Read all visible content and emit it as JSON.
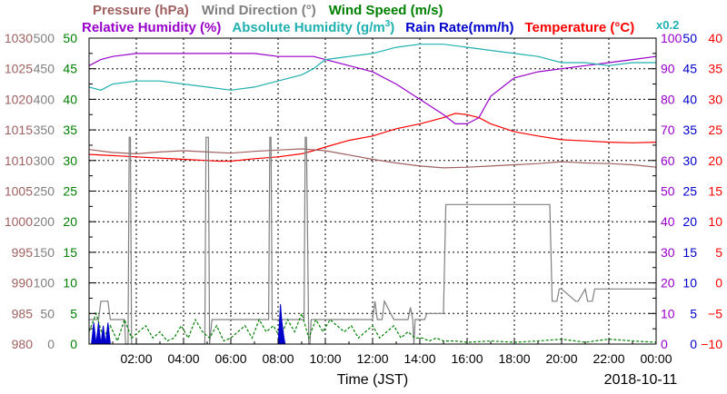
{
  "chart_data": {
    "type": "line",
    "x_axis": {
      "label": "Time (JST)",
      "date": "2018-10-11",
      "unit": "hours",
      "range": [
        0,
        24
      ],
      "tick_values": [
        2,
        4,
        6,
        8,
        10,
        12,
        14,
        16,
        18,
        20,
        22,
        24
      ],
      "tick_labels": [
        "02:00",
        "04:00",
        "06:00",
        "08:00",
        "10:00",
        "12:00",
        "14:00",
        "16:00",
        "18:00",
        "20:00",
        "22:00",
        "00:00"
      ]
    },
    "legend": {
      "row1": [
        {
          "text": "Pressure (hPa)",
          "color": "#a06060"
        },
        {
          "text": "Wind Direction (°)",
          "color": "#808080"
        },
        {
          "text": "Wind Speed (m/s)",
          "color": "#008000"
        }
      ],
      "row2": [
        {
          "text": "Relative Humidity (%)",
          "color": "#9900cc"
        },
        {
          "text": "Absolute Humidity (g/m",
          "sup": "3",
          "close": ")",
          "color": "#20b0b0"
        },
        {
          "text": "Rain Rate(mm/h)",
          "color": "#0000cc"
        },
        {
          "text": "Temperature (°C)",
          "color": "#ff0000"
        }
      ],
      "note": {
        "text": "x0.2",
        "color": "#20b0b0"
      }
    },
    "y_axes": {
      "pressure": {
        "color": "#a06060",
        "ticks": [
          980,
          985,
          990,
          995,
          1000,
          1005,
          1010,
          1015,
          1020,
          1025,
          1030
        ],
        "range": [
          980,
          1030
        ]
      },
      "wind_direction": {
        "color": "#808080",
        "ticks": [
          0,
          50,
          100,
          150,
          200,
          250,
          300,
          350,
          400,
          450,
          500
        ],
        "range": [
          0,
          500
        ]
      },
      "wind_speed": {
        "color": "#008000",
        "ticks": [
          0,
          5,
          10,
          15,
          20,
          25,
          30,
          35,
          40,
          45,
          50
        ],
        "range": [
          0,
          50
        ]
      },
      "humidity": {
        "color": "#9900cc",
        "ticks": [
          0,
          10,
          20,
          30,
          40,
          50,
          60,
          70,
          80,
          90,
          100
        ],
        "range": [
          0,
          100
        ]
      },
      "rain_rate": {
        "color": "#0000cc",
        "ticks": [
          0,
          5,
          10,
          15,
          20,
          25,
          30,
          35,
          40,
          45,
          50
        ],
        "range": [
          0,
          50
        ]
      },
      "temperature": {
        "color": "#ff0000",
        "ticks": [
          "−10",
          "−5",
          "0",
          "5",
          "10",
          "15",
          "20",
          "25",
          "30",
          "35",
          "40"
        ],
        "range": [
          -10,
          40
        ]
      }
    },
    "grid": true,
    "series": [
      {
        "name": "Temperature (°C)",
        "axis": "temperature",
        "color": "#ff0000",
        "x": [
          0,
          1,
          2,
          3,
          4,
          5,
          5.5,
          6,
          7,
          8,
          9,
          9.5,
          10,
          11,
          12,
          13,
          14,
          15,
          15.5,
          16,
          16.5,
          17,
          18,
          19,
          20,
          21,
          22,
          23,
          24
        ],
        "y": [
          21.0,
          20.8,
          20.6,
          20.4,
          20.2,
          20.0,
          19.9,
          19.9,
          20.3,
          20.6,
          21.1,
          21.6,
          22.2,
          23.3,
          24.0,
          25.2,
          26.0,
          27.0,
          27.7,
          27.5,
          27.0,
          26.0,
          24.7,
          24.0,
          23.4,
          23.2,
          23.0,
          22.9,
          23.0
        ]
      },
      {
        "name": "Relative Humidity (%)",
        "axis": "humidity",
        "color": "#9900cc",
        "x": [
          0,
          0.5,
          1,
          2,
          3,
          4,
          5,
          6,
          7,
          8,
          9,
          9.5,
          10,
          11,
          12,
          13,
          14,
          15,
          15.5,
          16,
          16.5,
          17,
          18,
          19,
          20,
          21,
          22,
          23,
          24
        ],
        "y": [
          91,
          93,
          94,
          95,
          95,
          95,
          95,
          95,
          95,
          94,
          94,
          94,
          93,
          91,
          89,
          85,
          80,
          75,
          72,
          72,
          74,
          81,
          87,
          89,
          90,
          91,
          92,
          93,
          94
        ]
      },
      {
        "name": "Absolute Humidity (g/m3)",
        "axis": "humidity",
        "scale": 0.2,
        "color": "#20b0b0",
        "x": [
          0,
          0.5,
          1,
          2,
          3,
          4,
          5,
          6,
          7,
          8,
          9,
          9.5,
          10,
          11,
          12,
          13,
          14,
          15,
          16,
          17,
          18,
          19,
          20,
          21,
          22,
          23,
          24
        ],
        "y": [
          84,
          83,
          85,
          86,
          86,
          85,
          84,
          83,
          84,
          86,
          88,
          90,
          93,
          94,
          95,
          97,
          98,
          98,
          97,
          96,
          95,
          94,
          92,
          92,
          91,
          92,
          92
        ]
      },
      {
        "name": "Pressure (hPa)",
        "axis": "pressure",
        "color": "#a06060",
        "x": [
          0,
          1,
          2,
          3,
          4,
          5,
          6,
          7,
          8,
          9,
          10,
          11,
          12,
          13,
          14,
          15,
          16,
          17,
          18,
          19,
          20,
          21,
          22,
          23,
          24
        ],
        "y": [
          1011.8,
          1011.3,
          1011.1,
          1011.4,
          1011.6,
          1011.4,
          1011.2,
          1011.5,
          1011.7,
          1011.9,
          1011.6,
          1010.9,
          1010.2,
          1009.6,
          1009.1,
          1008.8,
          1008.9,
          1009.1,
          1009.3,
          1009.5,
          1009.8,
          1009.6,
          1009.5,
          1009.3,
          1008.9
        ]
      },
      {
        "name": "Wind Direction (°)",
        "axis": "wind_direction",
        "color": "#808080",
        "x": [
          0,
          0.4,
          0.5,
          0.8,
          0.9,
          1.5,
          1.55,
          1.65,
          1.7,
          1.75,
          1.8,
          4.9,
          4.95,
          5.05,
          5.1,
          5.2,
          5.5,
          7.6,
          7.65,
          7.7,
          7.75,
          7.8,
          8.2,
          9.1,
          9.15,
          9.2,
          9.3,
          9.35,
          9.4,
          9.5,
          12.0,
          12.1,
          12.2,
          12.4,
          12.5,
          12.9,
          13.0,
          13.5,
          13.6,
          13.7,
          13.75,
          13.8,
          14.2,
          14.3,
          14.4,
          15.0,
          15.1,
          15.2,
          19.4,
          19.5,
          19.6,
          19.8,
          19.9,
          20.0,
          20.6,
          20.7,
          21.0,
          21.1,
          21.3,
          21.4,
          21.6,
          24.0
        ],
        "y": [
          40,
          40,
          70,
          70,
          40,
          40,
          0,
          0,
          338,
          338,
          0,
          0,
          338,
          338,
          0,
          40,
          40,
          40,
          338,
          338,
          40,
          40,
          40,
          40,
          338,
          338,
          0,
          0,
          40,
          40,
          40,
          70,
          40,
          40,
          70,
          40,
          40,
          40,
          60,
          40,
          0,
          40,
          40,
          50,
          50,
          50,
          228,
          228,
          228,
          228,
          70,
          70,
          90,
          90,
          70,
          70,
          90,
          70,
          70,
          90,
          90,
          90
        ]
      },
      {
        "name": "Wind Speed (m/s)",
        "axis": "wind_speed",
        "color": "#008000",
        "style": "dashed",
        "x": [
          0,
          0.3,
          0.6,
          0.9,
          1.2,
          1.5,
          1.8,
          2.1,
          2.4,
          2.7,
          3.0,
          3.3,
          3.6,
          3.9,
          4.2,
          4.5,
          4.8,
          5.1,
          5.4,
          5.7,
          6.0,
          6.3,
          6.6,
          6.9,
          7.2,
          7.5,
          7.8,
          8.1,
          8.4,
          8.7,
          9.0,
          9.3,
          9.6,
          9.9,
          10.2,
          10.5,
          10.8,
          11.1,
          11.4,
          11.7,
          12.0,
          12.3,
          12.6,
          12.9,
          13.2,
          13.5,
          13.8,
          14.1,
          14.4,
          14.7,
          15.0,
          15.5,
          16.0,
          17.0,
          18.0,
          19.0,
          20.0,
          21.0,
          22.0,
          23.0,
          24.0
        ],
        "y": [
          2,
          5,
          1,
          3,
          0.5,
          4,
          1,
          2,
          3,
          1,
          2,
          0.5,
          1,
          3,
          1,
          4,
          2,
          1,
          3,
          0.5,
          1,
          2,
          3,
          1,
          4,
          2,
          3,
          1,
          4,
          2,
          5,
          1,
          4,
          2,
          4,
          3,
          2,
          3,
          1,
          2,
          3,
          1,
          2,
          3,
          1,
          2,
          1,
          1,
          0.5,
          1,
          0.5,
          0.5,
          0.3,
          0.5,
          0.3,
          0.5,
          0.8,
          0.3,
          0.8,
          0.5,
          0.3
        ]
      },
      {
        "name": "Rain Rate(mm/h)",
        "axis": "rain_rate",
        "color": "#0000cc",
        "type": "area",
        "x": [
          0.1,
          0.2,
          0.3,
          0.4,
          0.5,
          0.6,
          0.7,
          0.8,
          0.9,
          8.0,
          8.05,
          8.1,
          8.15,
          8.2,
          8.25,
          8.3
        ],
        "y": [
          0,
          3.5,
          0,
          3.5,
          0,
          3.0,
          0,
          3.5,
          0,
          0,
          3.0,
          6.5,
          4.0,
          2.5,
          1.0,
          0
        ]
      }
    ]
  }
}
